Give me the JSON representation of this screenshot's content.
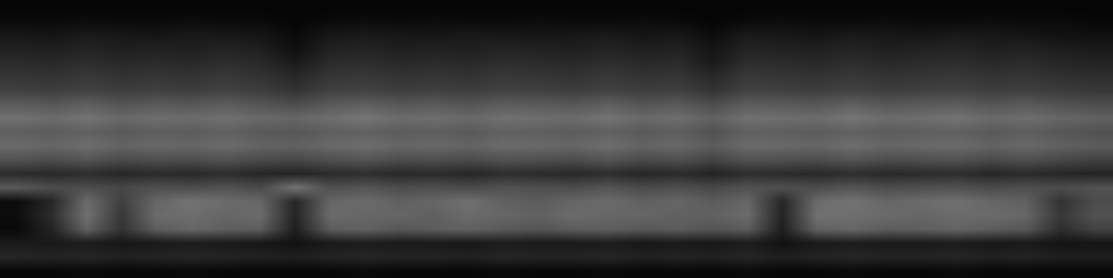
{
  "chart_data": {
    "type": "heatmap",
    "tick_labels": false,
    "color": "gray",
    "color_range": [
      0,
      1
    ],
    "cells": [
      [
        0.02,
        0.02,
        0.02,
        0.02,
        0.02,
        0.02,
        0.02,
        0.02,
        0.02,
        0.02,
        0.02,
        0.02,
        0.02,
        0.02,
        0.02,
        0.02,
        0.02,
        0.02,
        0.02,
        0.02,
        0.02,
        0.02,
        0.02,
        0.02,
        0.02,
        0.02,
        0.02,
        0.02,
        0.02,
        0.02,
        0.02,
        0.02
      ],
      [
        0.04,
        0.04,
        0.05,
        0.04,
        0.04,
        0.05,
        0.04,
        0.04,
        0.02,
        0.04,
        0.05,
        0.04,
        0.05,
        0.04,
        0.04,
        0.05,
        0.04,
        0.04,
        0.05,
        0.04,
        0.02,
        0.04,
        0.05,
        0.04,
        0.04,
        0.05,
        0.04,
        0.04,
        0.05,
        0.04,
        0.04,
        0.03
      ],
      [
        0.09,
        0.08,
        0.1,
        0.09,
        0.08,
        0.1,
        0.09,
        0.08,
        0.04,
        0.09,
        0.1,
        0.09,
        0.08,
        0.1,
        0.09,
        0.08,
        0.09,
        0.1,
        0.08,
        0.09,
        0.05,
        0.1,
        0.09,
        0.08,
        0.1,
        0.09,
        0.08,
        0.1,
        0.09,
        0.08,
        0.07,
        0.06
      ],
      [
        0.13,
        0.12,
        0.14,
        0.12,
        0.13,
        0.12,
        0.14,
        0.12,
        0.06,
        0.13,
        0.14,
        0.12,
        0.13,
        0.12,
        0.14,
        0.13,
        0.12,
        0.14,
        0.12,
        0.13,
        0.08,
        0.14,
        0.13,
        0.12,
        0.14,
        0.12,
        0.13,
        0.14,
        0.12,
        0.13,
        0.11,
        0.1
      ],
      [
        0.17,
        0.16,
        0.18,
        0.16,
        0.17,
        0.16,
        0.18,
        0.16,
        0.1,
        0.17,
        0.18,
        0.16,
        0.17,
        0.16,
        0.18,
        0.17,
        0.16,
        0.18,
        0.16,
        0.17,
        0.1,
        0.18,
        0.17,
        0.16,
        0.18,
        0.16,
        0.17,
        0.18,
        0.16,
        0.17,
        0.15,
        0.14
      ],
      [
        0.21,
        0.2,
        0.22,
        0.2,
        0.21,
        0.2,
        0.22,
        0.2,
        0.16,
        0.21,
        0.22,
        0.2,
        0.21,
        0.2,
        0.22,
        0.21,
        0.2,
        0.22,
        0.2,
        0.21,
        0.16,
        0.22,
        0.21,
        0.2,
        0.22,
        0.2,
        0.21,
        0.22,
        0.2,
        0.21,
        0.19,
        0.18
      ],
      [
        0.25,
        0.24,
        0.26,
        0.24,
        0.25,
        0.24,
        0.26,
        0.24,
        0.2,
        0.25,
        0.26,
        0.24,
        0.25,
        0.24,
        0.26,
        0.25,
        0.24,
        0.26,
        0.24,
        0.25,
        0.2,
        0.26,
        0.25,
        0.24,
        0.26,
        0.24,
        0.25,
        0.26,
        0.24,
        0.25,
        0.23,
        0.22
      ],
      [
        0.36,
        0.34,
        0.37,
        0.33,
        0.35,
        0.34,
        0.36,
        0.33,
        0.3,
        0.35,
        0.37,
        0.34,
        0.35,
        0.33,
        0.36,
        0.35,
        0.34,
        0.37,
        0.33,
        0.35,
        0.3,
        0.36,
        0.35,
        0.34,
        0.37,
        0.34,
        0.35,
        0.36,
        0.33,
        0.35,
        0.32,
        0.3
      ],
      [
        0.44,
        0.42,
        0.45,
        0.41,
        0.43,
        0.42,
        0.44,
        0.41,
        0.4,
        0.43,
        0.46,
        0.42,
        0.43,
        0.41,
        0.44,
        0.43,
        0.42,
        0.45,
        0.41,
        0.43,
        0.38,
        0.44,
        0.43,
        0.42,
        0.46,
        0.42,
        0.43,
        0.45,
        0.41,
        0.43,
        0.4,
        0.38
      ],
      [
        0.37,
        0.36,
        0.38,
        0.35,
        0.37,
        0.36,
        0.38,
        0.35,
        0.34,
        0.37,
        0.38,
        0.36,
        0.37,
        0.35,
        0.38,
        0.37,
        0.36,
        0.38,
        0.35,
        0.37,
        0.32,
        0.38,
        0.37,
        0.36,
        0.38,
        0.36,
        0.37,
        0.38,
        0.35,
        0.37,
        0.34,
        0.32
      ],
      [
        0.42,
        0.4,
        0.43,
        0.39,
        0.41,
        0.4,
        0.42,
        0.39,
        0.38,
        0.41,
        0.43,
        0.4,
        0.41,
        0.39,
        0.42,
        0.41,
        0.4,
        0.43,
        0.39,
        0.41,
        0.36,
        0.42,
        0.41,
        0.4,
        0.43,
        0.4,
        0.41,
        0.42,
        0.39,
        0.41,
        0.38,
        0.36
      ],
      [
        0.32,
        0.3,
        0.33,
        0.29,
        0.31,
        0.3,
        0.32,
        0.29,
        0.28,
        0.31,
        0.33,
        0.3,
        0.31,
        0.29,
        0.32,
        0.31,
        0.3,
        0.33,
        0.29,
        0.31,
        0.27,
        0.32,
        0.31,
        0.3,
        0.33,
        0.3,
        0.31,
        0.32,
        0.29,
        0.31,
        0.28,
        0.26
      ],
      [
        0.17,
        0.16,
        0.18,
        0.15,
        0.17,
        0.16,
        0.18,
        0.15,
        0.14,
        0.17,
        0.18,
        0.16,
        0.17,
        0.15,
        0.18,
        0.17,
        0.16,
        0.18,
        0.15,
        0.17,
        0.14,
        0.18,
        0.17,
        0.16,
        0.18,
        0.16,
        0.17,
        0.18,
        0.15,
        0.17,
        0.15,
        0.14
      ],
      [
        0.35,
        0.3,
        0.3,
        0.28,
        0.31,
        0.3,
        0.32,
        0.29,
        0.45,
        0.31,
        0.33,
        0.3,
        0.31,
        0.29,
        0.32,
        0.31,
        0.3,
        0.33,
        0.29,
        0.31,
        0.28,
        0.32,
        0.31,
        0.3,
        0.33,
        0.3,
        0.31,
        0.32,
        0.29,
        0.31,
        0.3,
        0.32
      ],
      [
        0.05,
        0.15,
        0.42,
        0.25,
        0.4,
        0.45,
        0.42,
        0.4,
        0.15,
        0.4,
        0.42,
        0.38,
        0.4,
        0.44,
        0.38,
        0.36,
        0.4,
        0.42,
        0.38,
        0.4,
        0.36,
        0.4,
        0.15,
        0.42,
        0.45,
        0.4,
        0.42,
        0.44,
        0.4,
        0.38,
        0.2,
        0.3
      ],
      [
        0.05,
        0.18,
        0.44,
        0.22,
        0.42,
        0.43,
        0.4,
        0.42,
        0.14,
        0.42,
        0.4,
        0.4,
        0.38,
        0.42,
        0.4,
        0.38,
        0.42,
        0.4,
        0.4,
        0.38,
        0.38,
        0.42,
        0.14,
        0.44,
        0.43,
        0.42,
        0.4,
        0.42,
        0.42,
        0.4,
        0.22,
        0.32
      ],
      [
        0.04,
        0.14,
        0.38,
        0.2,
        0.36,
        0.4,
        0.37,
        0.36,
        0.12,
        0.36,
        0.38,
        0.34,
        0.36,
        0.38,
        0.35,
        0.33,
        0.36,
        0.37,
        0.34,
        0.36,
        0.33,
        0.36,
        0.12,
        0.38,
        0.4,
        0.36,
        0.37,
        0.39,
        0.36,
        0.34,
        0.18,
        0.26
      ],
      [
        0.1,
        0.1,
        0.11,
        0.09,
        0.1,
        0.11,
        0.1,
        0.09,
        0.07,
        0.1,
        0.11,
        0.1,
        0.1,
        0.09,
        0.11,
        0.1,
        0.1,
        0.11,
        0.09,
        0.1,
        0.09,
        0.11,
        0.07,
        0.1,
        0.11,
        0.1,
        0.1,
        0.11,
        0.09,
        0.1,
        0.08,
        0.08
      ],
      [
        0.15,
        0.14,
        0.15,
        0.13,
        0.14,
        0.15,
        0.14,
        0.13,
        0.12,
        0.14,
        0.15,
        0.14,
        0.14,
        0.13,
        0.15,
        0.14,
        0.14,
        0.15,
        0.13,
        0.14,
        0.13,
        0.15,
        0.12,
        0.14,
        0.15,
        0.14,
        0.14,
        0.15,
        0.13,
        0.14,
        0.12,
        0.12
      ],
      [
        0.03,
        0.03,
        0.04,
        0.03,
        0.03,
        0.04,
        0.03,
        0.03,
        0.03,
        0.03,
        0.04,
        0.03,
        0.03,
        0.03,
        0.04,
        0.03,
        0.03,
        0.04,
        0.03,
        0.03,
        0.03,
        0.04,
        0.03,
        0.03,
        0.04,
        0.03,
        0.03,
        0.04,
        0.03,
        0.03,
        0.03,
        0.03
      ]
    ]
  }
}
